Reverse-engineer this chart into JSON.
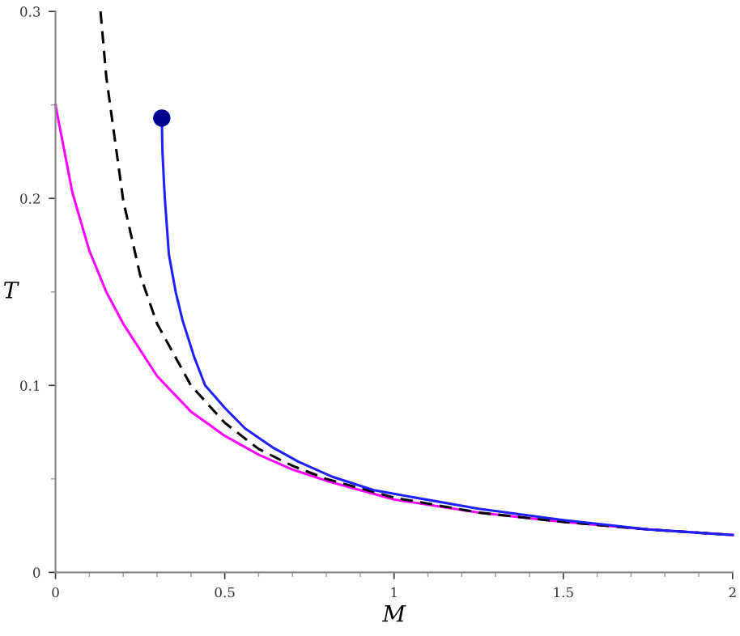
{
  "chart_data": {
    "type": "line",
    "xlabel": "M",
    "ylabel": "T",
    "xlim": [
      0,
      2
    ],
    "ylim": [
      0,
      0.3
    ],
    "xticks": [
      0,
      0.5,
      1,
      1.5,
      2
    ],
    "yticks": [
      0,
      0.1,
      0.2,
      0.3
    ],
    "grid": false,
    "legend": false,
    "marker": "none",
    "series": [
      {
        "color": "#ff00ff",
        "line_style": "solid",
        "x": [
          0,
          0.05,
          0.1,
          0.15,
          0.2,
          0.3,
          0.4,
          0.5,
          0.6,
          0.7,
          0.8,
          1,
          1.25,
          1.5,
          1.75,
          2
        ],
        "values": [
          0.25,
          0.203,
          0.172,
          0.15,
          0.133,
          0.105,
          0.086,
          0.073,
          0.063,
          0.055,
          0.049,
          0.039,
          0.032,
          0.027,
          0.023,
          0.02
        ]
      },
      {
        "color": "#000000",
        "line_style": "dashed",
        "x": [
          0.133,
          0.15,
          0.2,
          0.25,
          0.3,
          0.4,
          0.5,
          0.6,
          0.7,
          0.8,
          1,
          1.25,
          1.5,
          1.75,
          2
        ],
        "values": [
          0.3,
          0.265,
          0.199,
          0.159,
          0.133,
          0.1,
          0.08,
          0.066,
          0.057,
          0.05,
          0.04,
          0.032,
          0.027,
          0.023,
          0.02
        ]
      },
      {
        "color": "#2020ff",
        "line_style": "solid",
        "x": [
          0.314,
          0.316,
          0.32,
          0.323,
          0.335,
          0.355,
          0.375,
          0.41,
          0.442,
          0.5,
          0.56,
          0.64,
          0.72,
          0.82,
          0.94,
          1,
          1.25,
          1.5,
          1.75,
          2
        ],
        "values": [
          0.243,
          0.225,
          0.21,
          0.2,
          0.17,
          0.15,
          0.135,
          0.115,
          0.1,
          0.088,
          0.077,
          0.067,
          0.059,
          0.051,
          0.044,
          0.042,
          0.034,
          0.028,
          0.023,
          0.02
        ]
      },
      {
        "type": "scatter",
        "marker": "circle",
        "color": "#000090",
        "x": [
          0.314
        ],
        "values": [
          0.243
        ]
      }
    ]
  }
}
